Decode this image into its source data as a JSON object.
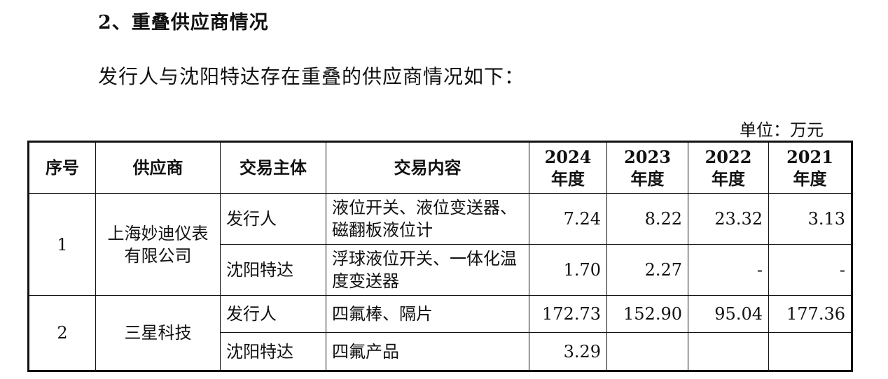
{
  "heading": "2、重叠供应商情况",
  "intro": "发行人与沈阳特达存在重叠的供应商情况如下：",
  "unit": "单位：万元",
  "table": {
    "headers": {
      "index": "序号",
      "supplier": "供应商",
      "entity": "交易主体",
      "content": "交易内容",
      "years": [
        {
          "year": "2024",
          "suffix": "年度"
        },
        {
          "year": "2023",
          "suffix": "年度"
        },
        {
          "year": "2022",
          "suffix": "年度"
        },
        {
          "year": "2021",
          "suffix": "年度"
        }
      ]
    },
    "groups": [
      {
        "index": "1",
        "supplier": "上海妙迪仪表有限公司",
        "rows": [
          {
            "entity": "发行人",
            "content": "液位开关、液位变送器、磁翻板液位计",
            "values": [
              "7.24",
              "8.22",
              "23.32",
              "3.13"
            ]
          },
          {
            "entity": "沈阳特达",
            "content": "浮球液位开关、一体化温度变送器",
            "values": [
              "1.70",
              "2.27",
              "-",
              "-"
            ]
          }
        ]
      },
      {
        "index": "2",
        "supplier": "三星科技",
        "rows": [
          {
            "entity": "发行人",
            "content": "四氟棒、隔片",
            "values": [
              "172.73",
              "152.90",
              "95.04",
              "177.36"
            ]
          },
          {
            "entity": "沈阳特达",
            "content": "四氟产品",
            "values": [
              "3.29",
              "",
              "",
              ""
            ]
          }
        ]
      }
    ]
  }
}
